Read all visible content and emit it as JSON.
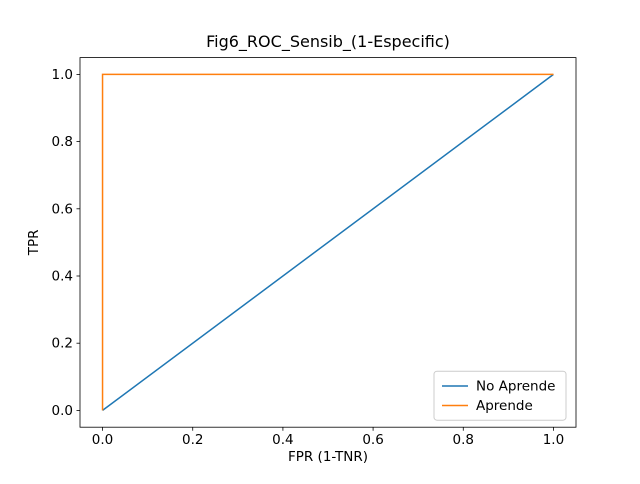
{
  "chart_data": {
    "type": "line",
    "title": "Fig6_ROC_Sensib_(1-Especific)",
    "xlabel": "FPR (1-TNR)",
    "ylabel": "TPR",
    "xlim": [
      -0.05,
      1.05
    ],
    "ylim": [
      -0.05,
      1.05
    ],
    "grid": false,
    "legend_position": "lower right",
    "xticks": {
      "values": [
        0.0,
        0.2,
        0.4,
        0.6,
        0.8,
        1.0
      ],
      "labels": [
        "0.0",
        "0.2",
        "0.4",
        "0.6",
        "0.8",
        "1.0"
      ]
    },
    "yticks": {
      "values": [
        0.0,
        0.2,
        0.4,
        0.6,
        0.8,
        1.0
      ],
      "labels": [
        "0.0",
        "0.2",
        "0.4",
        "0.6",
        "0.8",
        "1.0"
      ]
    },
    "series": [
      {
        "name": "No Aprende",
        "color": "#1f77b4",
        "x": [
          0,
          1
        ],
        "y": [
          0,
          1
        ]
      },
      {
        "name": "Aprende",
        "color": "#ff7f0e",
        "x": [
          0,
          0,
          1
        ],
        "y": [
          0,
          1,
          1
        ]
      }
    ],
    "colors": {
      "background": "#ffffff",
      "axes_edge": "#000000",
      "text": "#000000",
      "legend_border": "#cccccc"
    }
  }
}
